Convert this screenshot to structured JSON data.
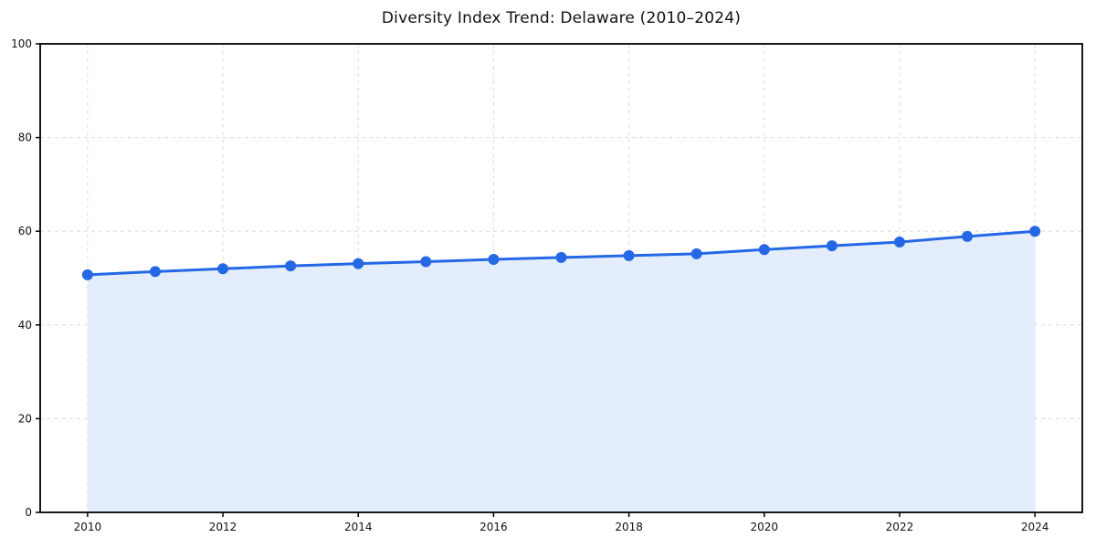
{
  "chart_data": {
    "type": "area",
    "title": "Diversity Index Trend: Delaware (2010–2024)",
    "xlabel": "",
    "ylabel": "",
    "series": [
      {
        "name": "Diversity Index",
        "x": [
          2010,
          2011,
          2012,
          2013,
          2014,
          2015,
          2016,
          2017,
          2018,
          2019,
          2020,
          2021,
          2022,
          2023,
          2024
        ],
        "values": [
          50.7,
          51.4,
          52.0,
          52.6,
          53.1,
          53.5,
          54.0,
          54.4,
          54.8,
          55.2,
          56.1,
          56.9,
          57.7,
          58.9,
          60.0
        ]
      }
    ],
    "xticks": [
      2010,
      2012,
      2014,
      2016,
      2018,
      2020,
      2022,
      2024
    ],
    "yticks": [
      0,
      20,
      40,
      60,
      80,
      100
    ],
    "xlim": [
      2009.3,
      2024.7
    ],
    "ylim": [
      0,
      100
    ],
    "grid": true,
    "grid_style": "dashed",
    "legend": "none",
    "marker": "circle",
    "colors": {
      "line": "#2468e5",
      "marker": "#2468e5",
      "fill": "#e4edfb",
      "grid": "#dcdcdc",
      "axis": "#000000",
      "tick_text": "#111111",
      "title_text": "#111111",
      "background": "#ffffff"
    }
  }
}
